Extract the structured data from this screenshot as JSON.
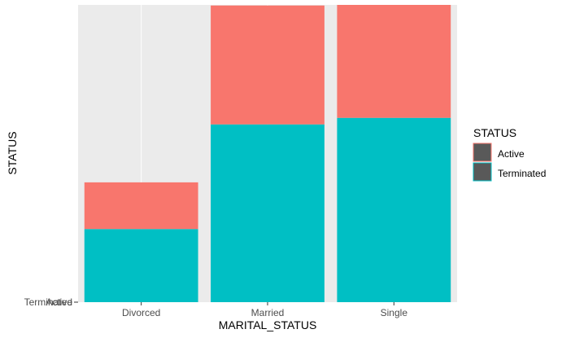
{
  "chart_data": {
    "type": "bar",
    "stacked": true,
    "title": "",
    "xlabel": "MARITAL_STATUS",
    "ylabel": "STATUS",
    "categories": [
      "Divorced",
      "Married",
      "Single"
    ],
    "y_tick_labels": [
      "Terminated",
      "Active"
    ],
    "series": [
      {
        "name": "Terminated",
        "color": "#00BFC4",
        "values": [
          0.246,
          0.598,
          0.62
        ]
      },
      {
        "name": "Active",
        "color": "#F8766D",
        "values": [
          0.157,
          0.4,
          0.38
        ]
      }
    ],
    "ylim": [
      0,
      1
    ],
    "grid": true,
    "panel_background": "#EBEBEB",
    "grid_color": "#FFFFFF",
    "legend": {
      "title": "STATUS",
      "position": "right",
      "entries": [
        "Active",
        "Terminated"
      ]
    }
  }
}
